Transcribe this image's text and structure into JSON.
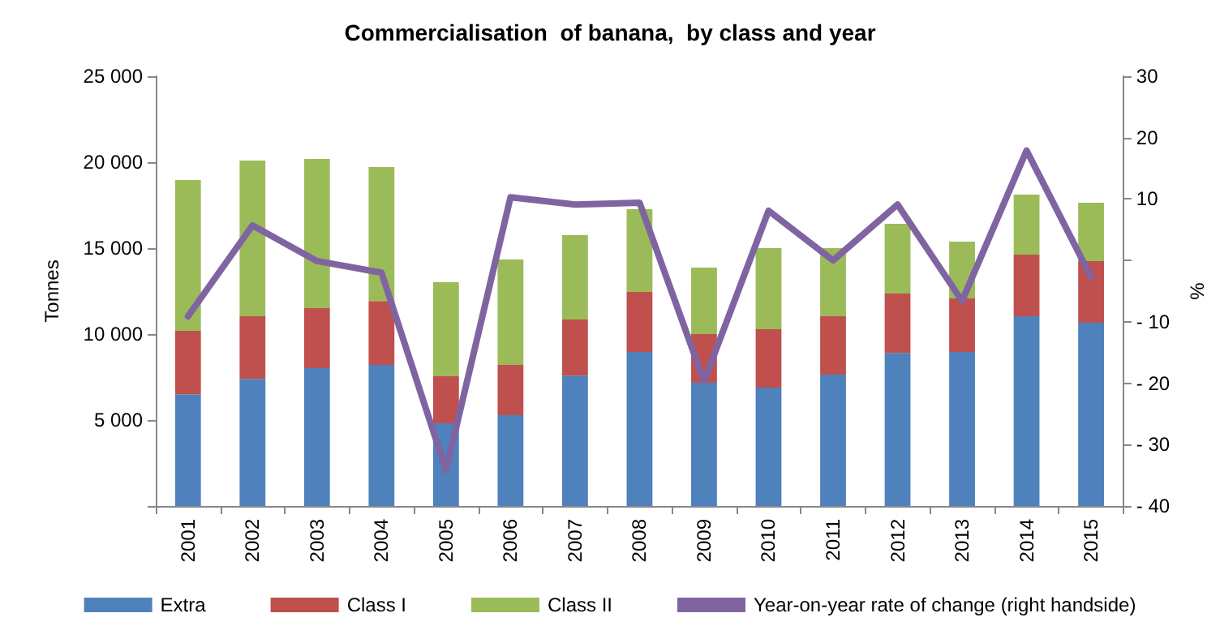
{
  "chart_data": {
    "type": "bar",
    "title": "Commercialisation  of banana,  by class and year",
    "ylabel": "Tonnes",
    "y2label": "%",
    "categories": [
      "2001",
      "2002",
      "2003",
      "2004",
      "2005",
      "2006",
      "2007",
      "2008",
      "2009",
      "2010",
      "2011",
      "2012",
      "2013",
      "2014",
      "2015"
    ],
    "stacked": true,
    "legend": "bottom",
    "grid": false,
    "ylim": [
      0,
      25000
    ],
    "yticks": [
      {
        "value": 0,
        "label": null
      },
      {
        "value": 5000,
        "label": "5 000"
      },
      {
        "value": 10000,
        "label": "10 000"
      },
      {
        "value": 15000,
        "label": "15 000"
      },
      {
        "value": 20000,
        "label": "20 000"
      },
      {
        "value": 25000,
        "label": "25 000"
      }
    ],
    "y2lim": [
      -40,
      30
    ],
    "y2ticks": [
      {
        "value": -40,
        "label": "- 40"
      },
      {
        "value": -30,
        "label": "- 30"
      },
      {
        "value": -20,
        "label": "- 20"
      },
      {
        "value": -10,
        "label": "- 10"
      },
      {
        "value": 0,
        "label": null
      },
      10,
      20,
      30
    ],
    "series": [
      {
        "name": "Extra",
        "color": "#4f81bd",
        "values": [
          6500,
          7390,
          8020,
          8210,
          4810,
          5280,
          7580,
          8960,
          7170,
          6890,
          7640,
          8900,
          8960,
          11040,
          10660
        ]
      },
      {
        "name": "Class I",
        "color": "#c0504d",
        "values": [
          3690,
          3650,
          3490,
          3710,
          2740,
          2930,
          3270,
          3490,
          2830,
          3390,
          3400,
          3460,
          3120,
          3580,
          3590
        ]
      },
      {
        "name": "Class II",
        "color": "#9bbb59",
        "values": [
          8770,
          9050,
          8680,
          7800,
          5470,
          6130,
          4900,
          4810,
          3870,
          4720,
          3960,
          4060,
          3300,
          3490,
          3390
        ]
      },
      {
        "name": "Year-on-year rate of change (right handside)",
        "type": "line",
        "axis": "y2",
        "color": "#8064a2",
        "marker": "none",
        "line_style": "solid",
        "values": [
          -9.1,
          5.7,
          -0.1,
          -2.0,
          -34.2,
          10.3,
          9.1,
          9.4,
          -19.7,
          8.1,
          0,
          9.1,
          -6.6,
          17.9,
          -2.7
        ]
      }
    ]
  }
}
